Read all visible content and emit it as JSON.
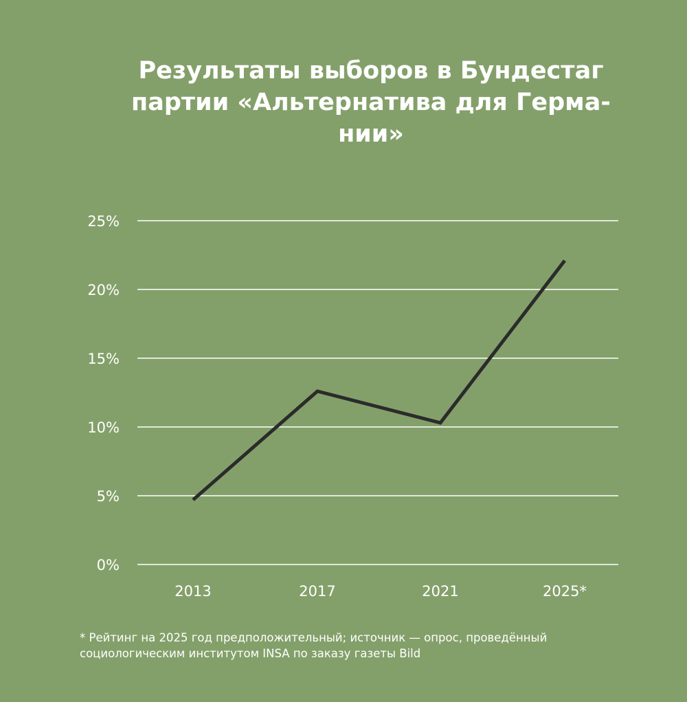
{
  "chart_data": {
    "type": "line",
    "title_lines": [
      "Результаты выборов в Бундестаг",
      "партии «Альтернатива для Герма-",
      "нии»"
    ],
    "categories": [
      "2013",
      "2017",
      "2021",
      "2025*"
    ],
    "series": [
      {
        "values": [
          4.7,
          12.6,
          10.3,
          22.1
        ]
      }
    ],
    "y_ticks": [
      "0%",
      "5%",
      "10%",
      "15%",
      "20%",
      "25%"
    ],
    "y_tick_values": [
      0,
      5,
      10,
      15,
      20,
      25
    ],
    "ylim": [
      0,
      25
    ],
    "grid": true,
    "line_color": "#2b2b2b",
    "grid_color": "#ffffff",
    "background_color": "#84a06a"
  },
  "footnote_lines": [
    "* Рейтинг на 2025 год предположительный; источник — опрос, проведённый",
    "социологическим институтом INSA по заказу газеты Bild"
  ]
}
